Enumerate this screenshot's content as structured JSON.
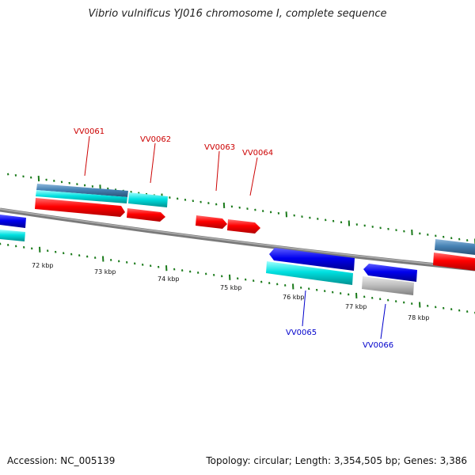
{
  "title": "Vibrio vulnificus YJ016 chromosome I, complete sequence",
  "footer": {
    "accession": "Accession: NC_005139",
    "summary": "Topology: circular; Length: 3,354,505 bp; Genes: 3,386"
  },
  "axis": {
    "tick_labels": [
      "72 kbp",
      "73 kbp",
      "74 kbp",
      "75 kbp",
      "76 kbp",
      "77 kbp",
      "78 kbp"
    ]
  },
  "gene_labels": {
    "top": [
      "VV0061",
      "VV0062",
      "VV0063",
      "VV0064"
    ],
    "bottom": [
      "VV0065",
      "VV0066"
    ]
  },
  "colors": {
    "forward_label": "#cc0000",
    "reverse_label": "#0000cc",
    "red_feature": "#ff0000",
    "blue_feature": "#0000ee",
    "cyan_feature": "#00dddd",
    "steel_feature": "#4682b4",
    "gray_feature": "#bbbbbb",
    "tick_green": "#1a7a1a",
    "backbone": "#808080"
  }
}
